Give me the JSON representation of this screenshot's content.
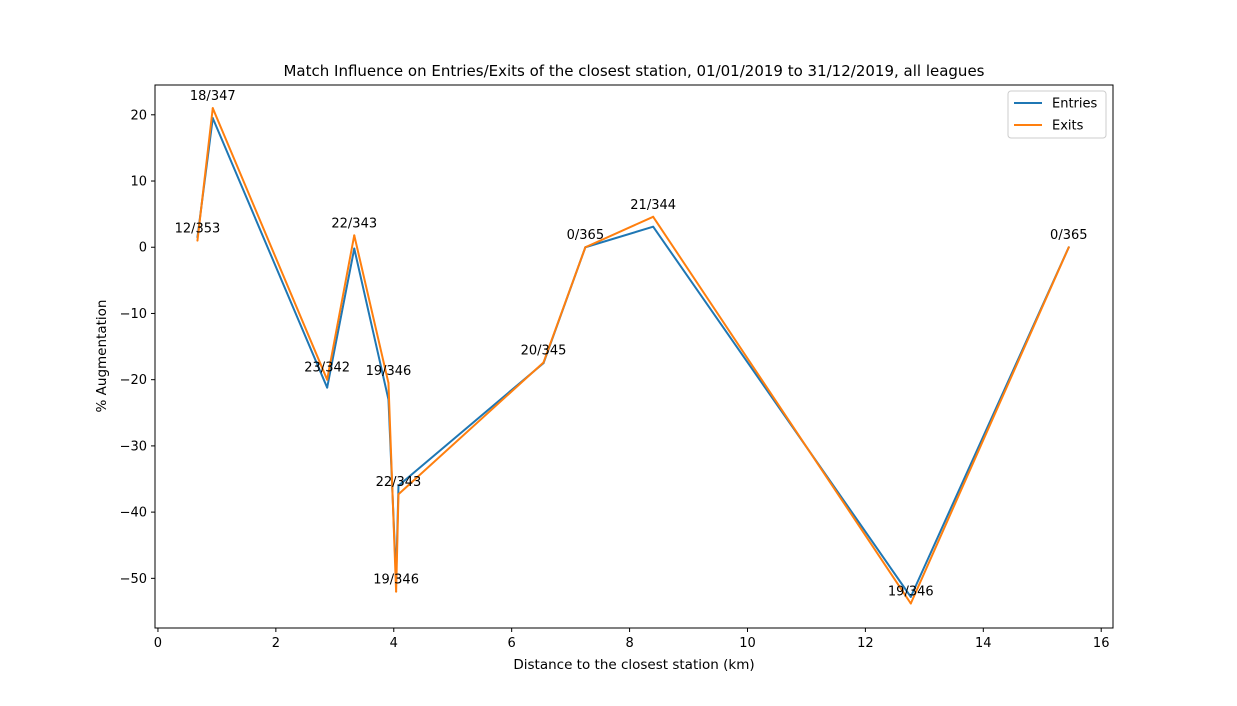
{
  "chart_data": {
    "type": "line",
    "title": "Match Influence on Entries/Exits of the closest station, 01/01/2019 to 31/12/2019, all leagues",
    "xlabel": "Distance to the closest station (km)",
    "ylabel": "% Augmentation",
    "xlim": [
      -0.05,
      16.2
    ],
    "ylim": [
      -57.5,
      24.5
    ],
    "xticks": [
      0,
      2,
      4,
      6,
      8,
      10,
      12,
      14,
      16
    ],
    "yticks": [
      20,
      10,
      0,
      -10,
      -20,
      -30,
      -40,
      -50
    ],
    "tick_labels_x": [
      "0",
      "2",
      "4",
      "6",
      "8",
      "10",
      "12",
      "14",
      "16"
    ],
    "tick_labels_y": [
      "20",
      "10",
      "0",
      "−10",
      "−20",
      "−30",
      "−40",
      "−50"
    ],
    "grid": false,
    "legend_position": "top-right",
    "series": [
      {
        "name": "Entries",
        "color": "#1f77b4",
        "x": [
          0.67,
          0.93,
          2.87,
          3.33,
          3.91,
          4.04,
          4.08,
          6.54,
          7.25,
          8.4,
          12.77,
          15.45
        ],
        "y": [
          1.5,
          19.5,
          -21.2,
          -0.2,
          -23.0,
          -50.0,
          -36.0,
          -17.5,
          0.0,
          3.1,
          -52.8,
          0.0
        ]
      },
      {
        "name": "Exits",
        "color": "#ff7f0e",
        "x": [
          0.67,
          0.93,
          2.87,
          3.33,
          3.91,
          4.04,
          4.08,
          6.54,
          7.25,
          8.4,
          12.77,
          15.45
        ],
        "y": [
          1.0,
          21.0,
          -20.0,
          1.8,
          -20.5,
          -52.0,
          -37.3,
          -17.4,
          0.0,
          4.6,
          -53.8,
          0.0
        ]
      }
    ],
    "annotations": [
      {
        "text": "12/353",
        "x": 0.67,
        "y": 1.0
      },
      {
        "text": "18/347",
        "x": 0.93,
        "y": 21.0
      },
      {
        "text": "23/342",
        "x": 2.87,
        "y": -20.0
      },
      {
        "text": "22/343",
        "x": 3.33,
        "y": 1.8
      },
      {
        "text": "19/346",
        "x": 3.91,
        "y": -20.5
      },
      {
        "text": "19/346",
        "x": 4.04,
        "y": -52.0
      },
      {
        "text": "22/343",
        "x": 4.08,
        "y": -37.3
      },
      {
        "text": "20/345",
        "x": 6.54,
        "y": -17.4
      },
      {
        "text": "0/365",
        "x": 7.25,
        "y": 0.0
      },
      {
        "text": "21/344",
        "x": 8.4,
        "y": 4.6
      },
      {
        "text": "19/346",
        "x": 12.77,
        "y": -53.8
      },
      {
        "text": "0/365",
        "x": 15.45,
        "y": 0.0
      }
    ]
  }
}
